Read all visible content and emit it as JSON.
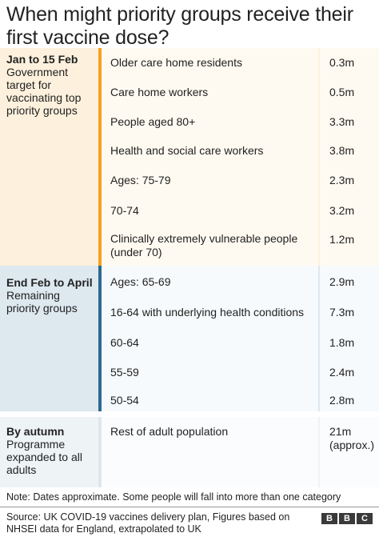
{
  "title": "When might priority groups receive their first vaccine dose?",
  "sections": [
    {
      "period": "Jan to 15 Feb",
      "description": "Government target for vaccinating top priority groups",
      "rows": [
        {
          "label": "Older care home residents",
          "value": "0.3m"
        },
        {
          "label": "Care home workers",
          "value": "0.5m"
        },
        {
          "label": "People aged 80+",
          "value": "3.3m"
        },
        {
          "label": "Health and social care workers",
          "value": "3.8m"
        },
        {
          "label": "Ages: 75-79",
          "value": "2.3m"
        },
        {
          "label": "70-74",
          "value": "3.2m"
        },
        {
          "label": "Clinically extremely vulnerable people (under 70)",
          "value": "1.2m"
        }
      ]
    },
    {
      "period": "End Feb to April",
      "description": "Remaining priority groups",
      "rows": [
        {
          "label": "Ages: 65-69",
          "value": "2.9m"
        },
        {
          "label": "16-64 with underlying health conditions",
          "value": "7.3m"
        },
        {
          "label": "60-64",
          "value": "1.8m"
        },
        {
          "label": "55-59",
          "value": "2.4m"
        },
        {
          "label": "50-54",
          "value": "2.8m"
        }
      ]
    },
    {
      "period": "By autumn",
      "description": "Programme expanded to all adults",
      "rows": [
        {
          "label": "Rest of adult population",
          "value": "21m (approx.)"
        }
      ]
    }
  ],
  "note": "Note: Dates approximate. Some people will fall into more than one category",
  "source": "Source: UK COVID-19 vaccines delivery plan, Figures based on NHSEI data for England, extrapolated to UK",
  "logo": [
    "B",
    "B",
    "C"
  ],
  "colors": {
    "jan_accent": "#f6a020",
    "jan_background": "#fdf1dd",
    "feb_accent": "#2d6a90",
    "feb_background": "#dde8ef",
    "autumn_background": "#eef3f6"
  }
}
